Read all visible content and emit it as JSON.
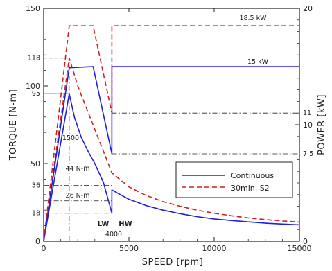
{
  "chart_data": {
    "type": "line",
    "xlabel": "SPEED [rpm]",
    "ylabel": "TORQUE [N-m]",
    "y2label": "POWER [kW]",
    "xlim": [
      0,
      15000
    ],
    "ylim": [
      0,
      150
    ],
    "y2lim": [
      0,
      20
    ],
    "x_ticks": [
      0,
      5000,
      10000,
      15000
    ],
    "y_ticks": [
      0,
      50,
      100,
      150
    ],
    "y_extra_ticks": [
      18,
      36,
      95,
      118
    ],
    "y2_ticks": [
      0,
      10,
      20
    ],
    "y2_extra_ticks": [
      7.5,
      11
    ],
    "grid": false,
    "legend_position": "center-right",
    "series": [
      {
        "name": "Continuous",
        "color": "#1f1fe0",
        "dash": "solid",
        "axis": "torque",
        "points": [
          [
            0,
            0
          ],
          [
            1500,
            95
          ],
          [
            1800,
            80
          ],
          [
            2200,
            67
          ],
          [
            2600,
            58
          ],
          [
            3000,
            50
          ],
          [
            3500,
            38
          ],
          [
            4000,
            18
          ],
          [
            4000,
            33
          ],
          [
            5000,
            27
          ],
          [
            6000,
            23
          ],
          [
            7000,
            20
          ],
          [
            8000,
            17.7
          ],
          [
            9000,
            15.8
          ],
          [
            10000,
            14.3
          ],
          [
            11000,
            13.3
          ],
          [
            12000,
            12.4
          ],
          [
            13000,
            11.6
          ],
          [
            14000,
            11
          ],
          [
            15000,
            10.5
          ]
        ]
      },
      {
        "name": "30min, S2",
        "color": "#cc1f1f",
        "dash": "dashed",
        "axis": "torque",
        "points": [
          [
            0,
            0
          ],
          [
            1500,
            118
          ],
          [
            2000,
            100
          ],
          [
            2500,
            86
          ],
          [
            3000,
            72
          ],
          [
            3500,
            58
          ],
          [
            4000,
            44
          ],
          [
            5000,
            35
          ],
          [
            6000,
            29.5
          ],
          [
            7000,
            25.5
          ],
          [
            8000,
            22.5
          ],
          [
            9000,
            20
          ],
          [
            10000,
            18
          ],
          [
            11000,
            16.4
          ],
          [
            12000,
            15
          ],
          [
            13000,
            13.9
          ],
          [
            14000,
            13
          ],
          [
            15000,
            12.3
          ]
        ]
      },
      {
        "name": "Continuous",
        "color": "#1f1fe0",
        "dash": "solid",
        "axis": "power",
        "points": [
          [
            0,
            0
          ],
          [
            1500,
            14.9
          ],
          [
            2900,
            15
          ],
          [
            4000,
            7.5
          ],
          [
            4000,
            15
          ],
          [
            15000,
            15
          ]
        ]
      },
      {
        "name": "30min, S2",
        "color": "#cc1f1f",
        "dash": "dashed",
        "axis": "power",
        "points": [
          [
            0,
            0
          ],
          [
            1500,
            18.5
          ],
          [
            2900,
            18.5
          ],
          [
            4000,
            11
          ],
          [
            4000,
            18.5
          ],
          [
            15000,
            18.5
          ]
        ]
      }
    ],
    "reference_lines": [
      {
        "kind": "hline",
        "axis": "torque",
        "y": 118,
        "x_from": 0,
        "x_to": 1500,
        "style": "dash"
      },
      {
        "kind": "hline",
        "axis": "torque",
        "y": 95,
        "x_from": 0,
        "x_to": 1500,
        "style": "solid"
      },
      {
        "kind": "hline",
        "axis": "torque",
        "y": 44,
        "x_from": 0,
        "x_to": 4000,
        "style": "dashdot"
      },
      {
        "kind": "hline",
        "axis": "torque",
        "y": 36,
        "x_from": 0,
        "x_to": 4000,
        "style": "dashdot"
      },
      {
        "kind": "hline",
        "axis": "torque",
        "y": 26,
        "x_from": 0,
        "x_to": 4000,
        "style": "dashdot"
      },
      {
        "kind": "hline",
        "axis": "torque",
        "y": 18,
        "x_from": 0,
        "x_to": 4000,
        "style": "dashdot"
      },
      {
        "kind": "hline",
        "axis": "power",
        "y": 11,
        "x_from": 4000,
        "x_to": 15000,
        "style": "dashdot"
      },
      {
        "kind": "hline",
        "axis": "power",
        "y": 7.5,
        "x_from": 4000,
        "x_to": 15000,
        "style": "dashdot"
      },
      {
        "kind": "vline",
        "x": 1500,
        "y_from": 0,
        "y_to": 118,
        "style": "dashdot"
      }
    ],
    "annotations": {
      "rpm_1500": "1500",
      "rpm_4000": "4000",
      "lw": "LW",
      "hw": "HW",
      "power_18_5": "18.5 kW",
      "power_15": "15 kW",
      "torque_44": "44 N-m",
      "torque_26": "26 N-m"
    }
  }
}
